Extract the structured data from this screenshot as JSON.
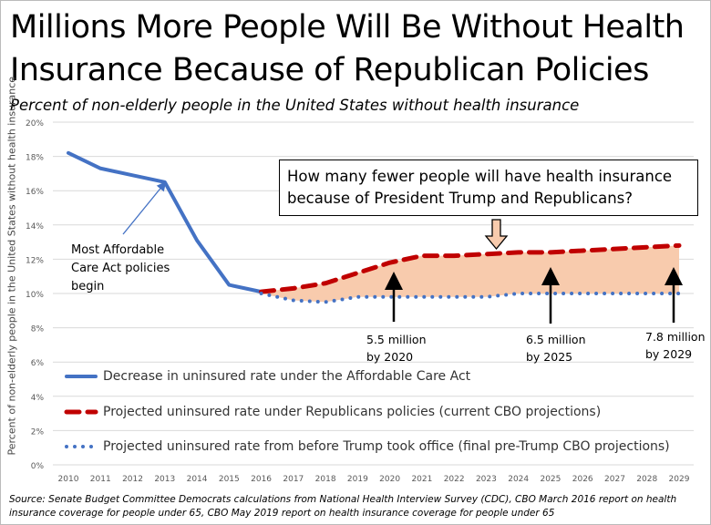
{
  "title_line1": "Millions More People Will Be Without Health",
  "title_line2": "Insurance Because of Republican Policies",
  "subtitle": "Percent of non-elderly people in the United States without health insurance",
  "callout": {
    "line1": "How many fewer people will have health insurance",
    "line2": "because of President Trump and Republicans?"
  },
  "annotation": {
    "line1": "Most Affordable",
    "line2": "Care Act policies",
    "line3": "begin"
  },
  "notes": [
    {
      "line1": "5.5 million",
      "line2": "by 2020"
    },
    {
      "line1": "6.5 million",
      "line2": "by 2025"
    },
    {
      "line1": "7.8 million",
      "line2": "by 2029"
    }
  ],
  "source_line1": "Source:  Senate Budget Committee  Democrats calculations from National Health Interview Survey (CDC), CBO March 2016 report on health",
  "source_line2": "insurance coverage for people under 65, CBO May 2019 report on health insurance coverage for people under 65",
  "chart_data": {
    "type": "line",
    "title": "Millions More People Will Be Without Health Insurance Because of Republican Policies",
    "ylabel": "Percent of non-elderly people in the United States without health insurance",
    "ylim": [
      0,
      20
    ],
    "yticks": [
      "0%",
      "2%",
      "4%",
      "6%",
      "8%",
      "10%",
      "12%",
      "14%",
      "16%",
      "18%",
      "20%"
    ],
    "x": [
      2010,
      2011,
      2012,
      2013,
      2014,
      2015,
      2016,
      2017,
      2018,
      2019,
      2020,
      2021,
      2022,
      2023,
      2024,
      2025,
      2026,
      2027,
      2028,
      2029
    ],
    "grid": true,
    "legend_position": "bottom-inside",
    "series": [
      {
        "name": "Decrease in uninsured rate under the Affordable Care Act",
        "color": "#4472c4",
        "style": "solid",
        "values": [
          18.2,
          17.3,
          16.9,
          16.5,
          13.1,
          10.5,
          10.1,
          null,
          null,
          null,
          null,
          null,
          null,
          null,
          null,
          null,
          null,
          null,
          null,
          null
        ]
      },
      {
        "name": "Projected uninsured rate under Republicans policies (current CBO projections)",
        "color": "#c00000",
        "style": "dashed",
        "values": [
          null,
          null,
          null,
          null,
          null,
          null,
          10.1,
          10.3,
          10.6,
          11.2,
          11.8,
          12.2,
          12.2,
          12.3,
          12.4,
          12.4,
          12.5,
          12.6,
          12.7,
          12.8
        ]
      },
      {
        "name": "Projected uninsured rate from before Trump took office (final pre-Trump CBO projections)",
        "color": "#4472c4",
        "style": "dotted",
        "values": [
          null,
          null,
          null,
          null,
          null,
          null,
          10.0,
          9.6,
          9.5,
          9.8,
          9.8,
          9.8,
          9.8,
          9.8,
          10.0,
          10.0,
          10.0,
          10.0,
          10.0,
          10.0
        ]
      }
    ],
    "fill_color": "#f8cbad"
  }
}
